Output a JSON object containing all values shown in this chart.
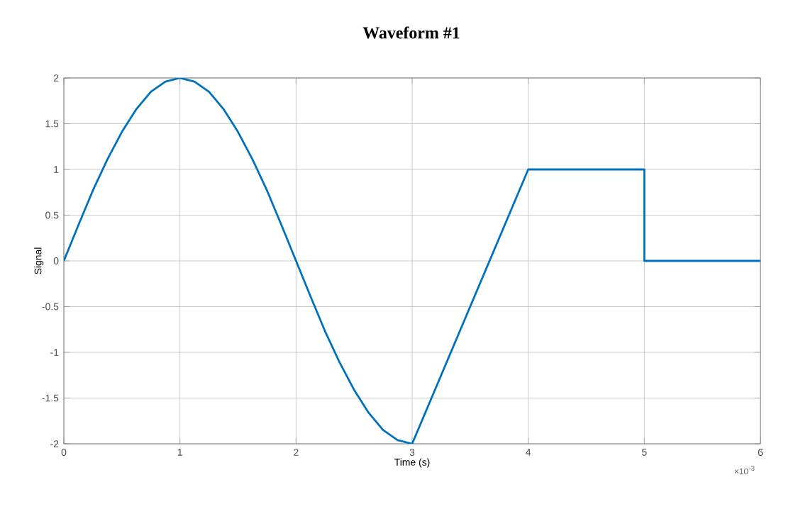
{
  "chart_data": {
    "type": "line",
    "title": "Waveform #1",
    "xlabel": "Time (s)",
    "ylabel": "Signal",
    "annotations": [
      "×10$^{-3}$"
    ],
    "series": [
      {
        "color": "#0072bd",
        "x": [
          0,
          0.125,
          0.25,
          0.375,
          0.5,
          0.625,
          0.75,
          0.875,
          1,
          1.125,
          1.25,
          1.375,
          1.5,
          1.625,
          1.75,
          1.875,
          2,
          2.125,
          2.25,
          2.375,
          2.5,
          2.625,
          2.75,
          2.875,
          3,
          4,
          5,
          5,
          6
        ],
        "values": [
          0,
          0.39,
          0.77,
          1.11,
          1.41,
          1.66,
          1.85,
          1.96,
          2,
          1.96,
          1.85,
          1.66,
          1.41,
          1.11,
          0.77,
          0.39,
          0,
          -0.39,
          -0.77,
          -1.11,
          -1.41,
          -1.66,
          -1.85,
          -1.96,
          -2,
          1,
          1,
          0,
          0
        ]
      }
    ],
    "xlim": [
      0,
      6
    ],
    "xticks": [
      0,
      1,
      2,
      3,
      4,
      5,
      6
    ],
    "ylim": [
      -2,
      2
    ],
    "yticks": [
      -2,
      -1.5,
      -1,
      -0.5,
      0,
      0.5,
      1,
      1.5,
      2
    ],
    "grid": true,
    "marker": "none",
    "line_style": "solid"
  }
}
